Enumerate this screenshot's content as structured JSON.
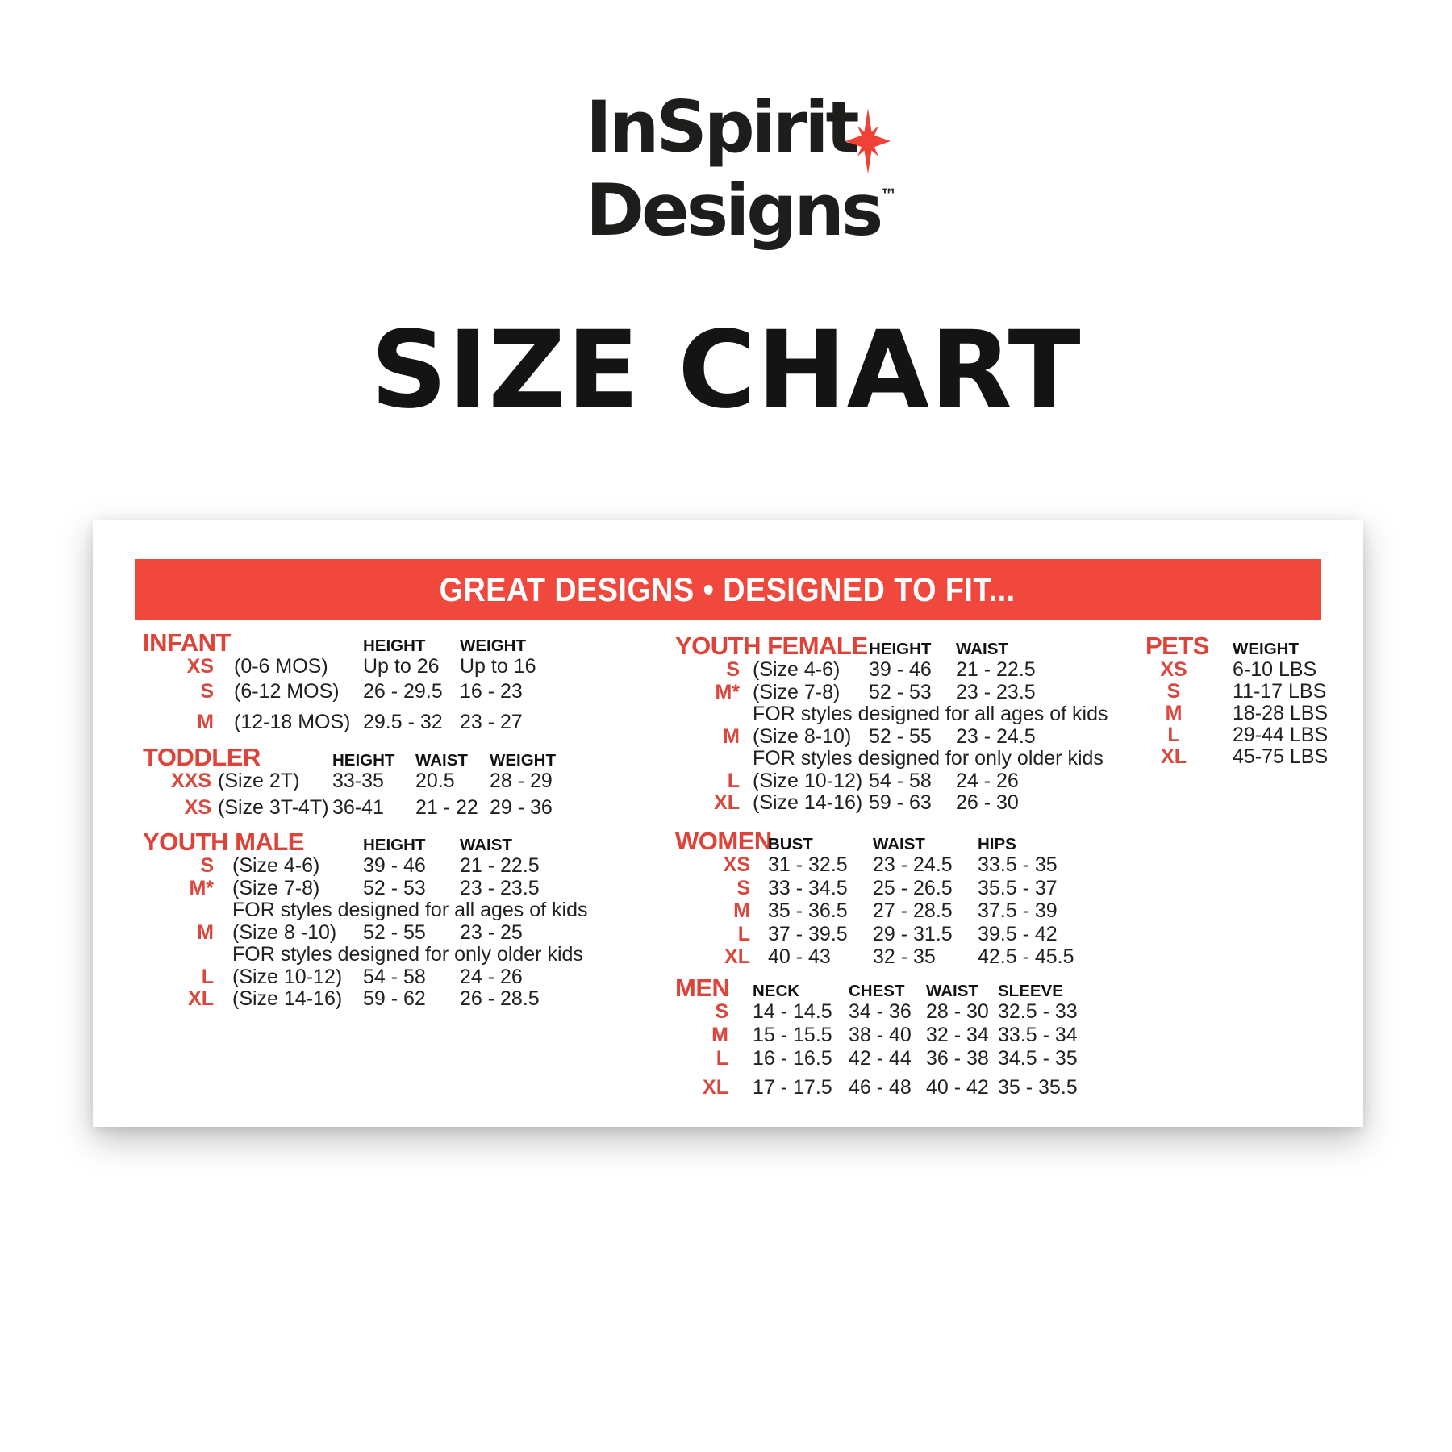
{
  "logo": {
    "line1": "InSpirit",
    "line2": "Designs",
    "trademark": "™",
    "star_icon": "sparkle-star-icon",
    "text_color": "#1d1d1b",
    "star_color": "#ef4136"
  },
  "page_title": "SIZE CHART",
  "banner": {
    "text": "GREAT DESIGNS • DESIGNED TO FIT...",
    "bg_color": "#f0483d",
    "text_color": "#ffffff"
  },
  "colors": {
    "section_title_red": "#dd4338",
    "label_red": "#d9473d",
    "body_text": "#231f20",
    "card_bg": "#ffffff"
  },
  "sections": {
    "infant": {
      "title": "INFANT",
      "headers": [
        "HEIGHT",
        "WEIGHT"
      ],
      "rows": [
        {
          "size": "XS",
          "desc": "(0-6 MOS)",
          "values": [
            "Up to 26",
            "Up to 16"
          ]
        },
        {
          "size": "S",
          "desc": "(6-12 MOS)",
          "values": [
            "26 - 29.5",
            "16 - 23"
          ]
        },
        {
          "size": "M",
          "desc": "(12-18 MOS)",
          "values": [
            "29.5 - 32",
            "23 - 27"
          ],
          "gap_before": true
        }
      ]
    },
    "toddler": {
      "title": "TODDLER",
      "headers": [
        "HEIGHT",
        "WAIST",
        "WEIGHT"
      ],
      "rows": [
        {
          "size": "XXS",
          "desc": "(Size 2T)",
          "values": [
            "33-35",
            "20.5",
            "28 - 29"
          ]
        },
        {
          "size": "XS",
          "desc": "(Size 3T-4T)",
          "values": [
            "36-41",
            "21 - 22",
            "29 - 36"
          ]
        }
      ]
    },
    "youth_male": {
      "title": "YOUTH MALE",
      "headers": [
        "HEIGHT",
        "WAIST"
      ],
      "rows": [
        {
          "size": "S",
          "desc": "(Size 4-6)",
          "values": [
            "39 - 46",
            "21 - 22.5"
          ]
        },
        {
          "size": "M*",
          "desc": "(Size 7-8)",
          "values": [
            "52 - 53",
            "23 - 23.5"
          ]
        },
        {
          "note": "FOR styles designed for all ages of kids"
        },
        {
          "size": "M",
          "desc": "(Size 8 -10)",
          "values": [
            "52 - 55",
            "23 - 25"
          ]
        },
        {
          "note": "FOR styles designed for only older kids"
        },
        {
          "size": "L",
          "desc": "(Size 10-12)",
          "values": [
            "54 - 58",
            "24 - 26"
          ]
        },
        {
          "size": "XL",
          "desc": "(Size 14-16)",
          "values": [
            "59 - 62",
            "26 - 28.5"
          ]
        }
      ]
    },
    "youth_female": {
      "title": "YOUTH FEMALE",
      "headers": [
        "HEIGHT",
        "WAIST"
      ],
      "rows": [
        {
          "size": "S",
          "desc": "(Size 4-6)",
          "values": [
            "39 - 46",
            "21 - 22.5"
          ]
        },
        {
          "size": "M*",
          "desc": "(Size 7-8)",
          "values": [
            "52 - 53",
            "23 - 23.5"
          ]
        },
        {
          "note": "FOR styles designed for all ages of kids"
        },
        {
          "size": "M",
          "desc": "(Size 8-10)",
          "values": [
            "52 - 55",
            "23 - 24.5"
          ]
        },
        {
          "note": "FOR styles designed for only older kids"
        },
        {
          "size": "L",
          "desc": "(Size 10-12)",
          "values": [
            "54 - 58",
            "24 - 26"
          ]
        },
        {
          "size": "XL",
          "desc": "(Size 14-16)",
          "values": [
            "59 - 63",
            "26 - 30"
          ]
        }
      ]
    },
    "women": {
      "title": "WOMEN",
      "headers": [
        "BUST",
        "WAIST",
        "HIPS"
      ],
      "rows": [
        {
          "size": "XS",
          "values": [
            "31 - 32.5",
            "23 - 24.5",
            "33.5 - 35"
          ]
        },
        {
          "size": "S",
          "values": [
            "33 - 34.5",
            "25 - 26.5",
            "35.5 - 37"
          ]
        },
        {
          "size": "M",
          "values": [
            "35 - 36.5",
            "27 - 28.5",
            "37.5 - 39"
          ]
        },
        {
          "size": "L",
          "values": [
            "37 - 39.5",
            "29 - 31.5",
            "39.5 - 42"
          ]
        },
        {
          "size": "XL",
          "values": [
            "40 - 43",
            "32 - 35",
            "42.5 - 45.5"
          ]
        }
      ]
    },
    "men": {
      "title": "MEN",
      "headers": [
        "NECK",
        "CHEST",
        "WAIST",
        "SLEEVE"
      ],
      "rows": [
        {
          "size": "S",
          "values": [
            "14 - 14.5",
            "34 - 36",
            "28 - 30",
            "32.5 - 33"
          ]
        },
        {
          "size": "M",
          "values": [
            "15 - 15.5",
            "38 - 40",
            "32 - 34",
            "33.5 - 34"
          ]
        },
        {
          "size": "L",
          "values": [
            "16 - 16.5",
            "42 - 44",
            "36 - 38",
            "34.5 - 35"
          ]
        },
        {
          "size": "XL",
          "values": [
            "17 - 17.5",
            "46 - 48",
            "40 - 42",
            "35 - 35.5"
          ],
          "gap_before": true
        }
      ]
    },
    "pets": {
      "title": "PETS",
      "headers": [
        "WEIGHT"
      ],
      "rows": [
        {
          "size": "XS",
          "values": [
            "6-10 LBS"
          ]
        },
        {
          "size": "S",
          "values": [
            "11-17 LBS"
          ]
        },
        {
          "size": "M",
          "values": [
            "18-28 LBS"
          ]
        },
        {
          "size": "L",
          "values": [
            "29-44 LBS"
          ]
        },
        {
          "size": "XL",
          "values": [
            "45-75 LBS"
          ]
        }
      ]
    }
  }
}
